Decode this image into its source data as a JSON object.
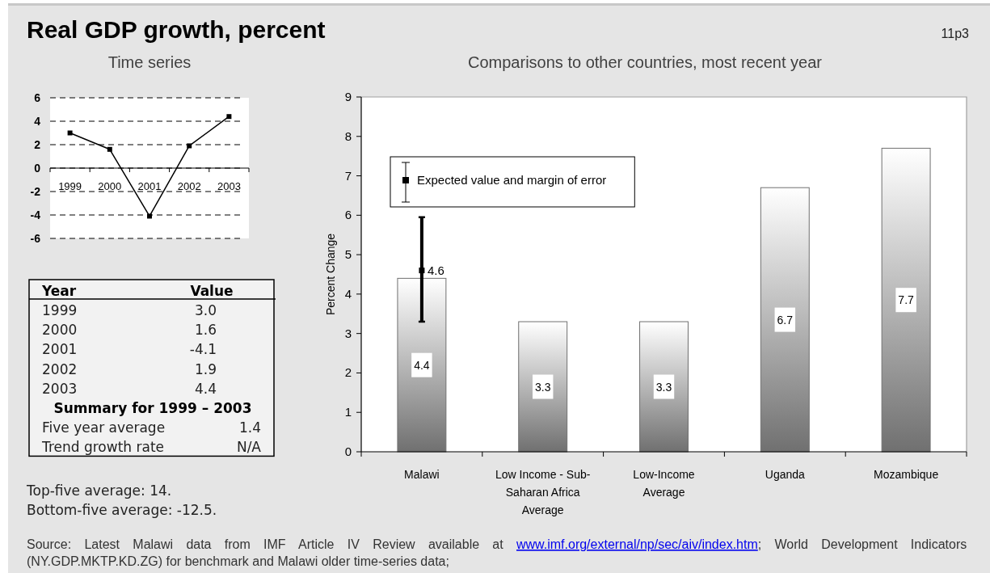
{
  "chart_data": [
    {
      "type": "other",
      "title": "Real GDP growth, percent",
      "annotations": [
        "11p3",
        "Top-five average: 14.",
        "Bottom-five average: -12.5.",
        "Source: Latest Malawi data from IMF Article IV Review available at www.imf.org/external/np/sec/aiv/index.htm; World Development Indicators (NY.GDP.MKTP.KD.ZG) for benchmark and Malawi older time-series data;"
      ]
    },
    {
      "type": "line",
      "title": "Time series",
      "categories": [
        "1999",
        "2000",
        "2001",
        "2002",
        "2003"
      ],
      "series": [
        {
          "color": "#000000",
          "values": [
            3.0,
            1.6,
            -4.1,
            1.9,
            4.4
          ]
        }
      ],
      "ylim": [
        -6,
        6
      ],
      "yticks": [
        -6,
        -4,
        -2,
        0,
        2,
        4,
        6
      ],
      "grid": "y",
      "marker": "square"
    },
    {
      "type": "heatmap",
      "ylabel": "Year",
      "categories": [
        "Value"
      ],
      "y_categories": [
        "1999",
        "2000",
        "2001",
        "2002",
        "2003"
      ],
      "cells": [
        [
          3.0
        ],
        [
          1.6
        ],
        [
          -4.1
        ],
        [
          1.9
        ],
        [
          4.4
        ]
      ],
      "cell_labels": [
        [
          "3.0"
        ],
        [
          "1.6"
        ],
        [
          "-4.1"
        ],
        [
          "1.9"
        ],
        [
          "4.4"
        ]
      ],
      "annotations": [
        "Summary for 1999 – 2003",
        "Five year average",
        "1.4",
        "Trend growth rate",
        "N/A"
      ]
    },
    {
      "type": "bar",
      "title": "Comparisons to other countries, most recent year",
      "ylabel": "Percent Change",
      "categories": [
        "Malawi",
        "Low Income - Sub-Saharan Africa Average",
        "Low-Income Average",
        "Uganda",
        "Mozambique"
      ],
      "series": [
        {
          "type": "bar",
          "color": "#707070",
          "values": [
            4.4,
            3.3,
            3.3,
            6.7,
            7.7
          ]
        },
        {
          "type": "scatter",
          "name": "Expected value and margin of error",
          "color": "#000000",
          "x": [
            "Malawi"
          ],
          "values": [
            4.6
          ],
          "errors": [
            [
              3.3,
              5.95
            ]
          ]
        }
      ],
      "ylim": [
        0,
        9
      ],
      "yticks": [
        0,
        1,
        2,
        3,
        4,
        5,
        6,
        7,
        8,
        9
      ],
      "data_labels": true,
      "legend": "top left",
      "marker": "square"
    }
  ]
}
